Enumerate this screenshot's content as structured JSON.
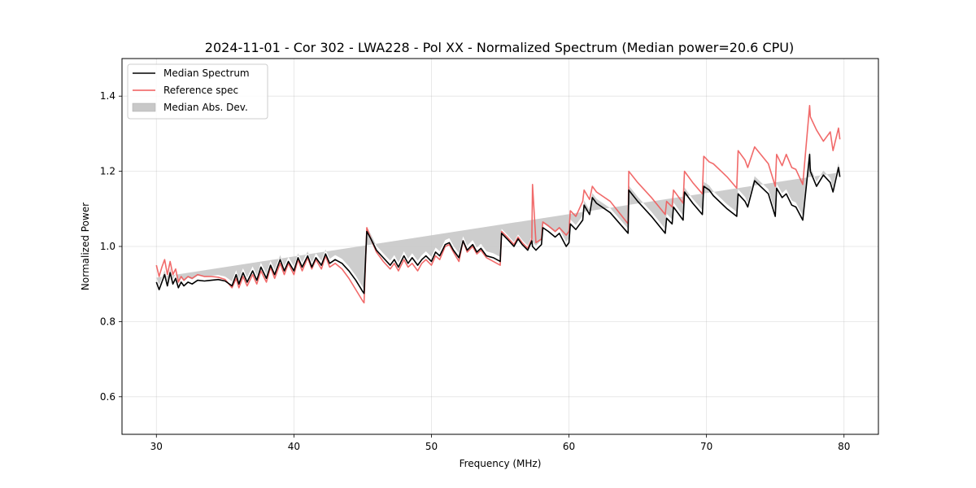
{
  "chart_data": {
    "type": "line",
    "title": "2024-11-01 - Cor 302 - LWA228 - Pol XX - Normalized Spectrum (Median power=20.6 CPU)",
    "xlabel": "Frequency (MHz)",
    "ylabel": "Normalized Power",
    "xlim": [
      27.5,
      82.5
    ],
    "ylim": [
      0.5,
      1.5
    ],
    "xticks": [
      30,
      40,
      50,
      60,
      70,
      80
    ],
    "xtick_labels": [
      "30",
      "40",
      "50",
      "60",
      "70",
      "80"
    ],
    "yticks": [
      0.6,
      0.8,
      1.0,
      1.2,
      1.4
    ],
    "ytick_labels": [
      "0.6",
      "0.8",
      "1.0",
      "1.2",
      "1.4"
    ],
    "grid": true,
    "legend": {
      "placement": "top-left",
      "entries": [
        {
          "label": "Median Spectrum",
          "kind": "line",
          "color": "#000000"
        },
        {
          "label": "Reference spec",
          "kind": "line",
          "color": "#f05a5a"
        },
        {
          "label": "Median Abs. Dev.",
          "kind": "band",
          "color": "#c8c8c8"
        }
      ]
    },
    "mad_halfwidth": 0.012,
    "x": [
      30.0,
      30.2,
      30.4,
      30.6,
      30.8,
      31.0,
      31.2,
      31.4,
      31.6,
      31.8,
      32.0,
      32.3,
      32.6,
      33.0,
      33.5,
      34.0,
      34.5,
      35.0,
      35.5,
      35.8,
      36.0,
      36.3,
      36.6,
      37.0,
      37.3,
      37.6,
      38.0,
      38.3,
      38.6,
      39.0,
      39.3,
      39.6,
      40.0,
      40.3,
      40.6,
      41.0,
      41.3,
      41.6,
      42.0,
      42.3,
      42.6,
      43.0,
      43.5,
      44.0,
      44.5,
      45.0,
      45.1,
      45.3,
      45.6,
      46.0,
      46.5,
      47.0,
      47.3,
      47.6,
      48.0,
      48.3,
      48.6,
      49.0,
      49.3,
      49.6,
      50.0,
      50.3,
      50.6,
      51.0,
      51.3,
      51.6,
      52.0,
      52.3,
      52.6,
      53.0,
      53.3,
      53.6,
      54.0,
      54.5,
      55.0,
      55.1,
      55.5,
      56.0,
      56.3,
      56.6,
      57.0,
      57.3,
      57.35,
      57.6,
      58.0,
      58.1,
      58.5,
      59.0,
      59.3,
      59.8,
      60.0,
      60.1,
      60.5,
      61.0,
      61.1,
      61.5,
      61.7,
      62.0,
      63.0,
      64.3,
      64.35,
      65.0,
      66.0,
      67.0,
      67.1,
      67.5,
      67.6,
      68.3,
      68.4,
      69.0,
      69.7,
      69.8,
      70.2,
      70.5,
      71.5,
      72.2,
      72.3,
      72.8,
      73.0,
      73.5,
      74.5,
      75.0,
      75.1,
      75.5,
      75.8,
      76.2,
      76.5,
      77.0,
      77.5,
      77.55,
      78.0,
      78.5,
      79.0,
      79.2,
      79.6,
      79.7,
      80.0
    ],
    "series": [
      {
        "name": "Median Spectrum",
        "color": "#000000",
        "values": [
          0.905,
          0.885,
          0.905,
          0.925,
          0.895,
          0.93,
          0.9,
          0.915,
          0.89,
          0.905,
          0.895,
          0.905,
          0.9,
          0.91,
          0.908,
          0.91,
          0.912,
          0.908,
          0.895,
          0.925,
          0.9,
          0.93,
          0.905,
          0.935,
          0.91,
          0.945,
          0.915,
          0.95,
          0.925,
          0.965,
          0.935,
          0.96,
          0.935,
          0.97,
          0.945,
          0.975,
          0.945,
          0.97,
          0.95,
          0.98,
          0.955,
          0.965,
          0.955,
          0.935,
          0.91,
          0.88,
          0.875,
          1.04,
          1.02,
          0.99,
          0.97,
          0.95,
          0.965,
          0.945,
          0.975,
          0.955,
          0.97,
          0.95,
          0.965,
          0.975,
          0.96,
          0.985,
          0.975,
          1.005,
          1.01,
          0.99,
          0.97,
          1.015,
          0.99,
          1.005,
          0.985,
          0.995,
          0.975,
          0.97,
          0.96,
          1.035,
          1.02,
          1.0,
          1.02,
          1.005,
          0.99,
          1.015,
          1.0,
          0.99,
          1.005,
          1.05,
          1.04,
          1.025,
          1.035,
          1.0,
          1.01,
          1.06,
          1.045,
          1.07,
          1.11,
          1.085,
          1.13,
          1.115,
          1.09,
          1.035,
          1.15,
          1.12,
          1.08,
          1.035,
          1.075,
          1.06,
          1.105,
          1.07,
          1.145,
          1.115,
          1.085,
          1.16,
          1.15,
          1.135,
          1.1,
          1.08,
          1.14,
          1.12,
          1.105,
          1.175,
          1.14,
          1.08,
          1.155,
          1.13,
          1.14,
          1.11,
          1.105,
          1.07,
          1.245,
          1.2,
          1.16,
          1.19,
          1.17,
          1.145,
          1.21,
          1.185
        ]
      },
      {
        "name": "Reference spec",
        "color": "#f05a5a",
        "values": [
          0.95,
          0.92,
          0.945,
          0.965,
          0.925,
          0.96,
          0.925,
          0.94,
          0.905,
          0.92,
          0.91,
          0.92,
          0.915,
          0.925,
          0.92,
          0.92,
          0.918,
          0.912,
          0.89,
          0.915,
          0.89,
          0.92,
          0.895,
          0.925,
          0.9,
          0.935,
          0.905,
          0.945,
          0.915,
          0.955,
          0.925,
          0.955,
          0.925,
          0.965,
          0.935,
          0.97,
          0.94,
          0.965,
          0.94,
          0.975,
          0.945,
          0.955,
          0.94,
          0.915,
          0.885,
          0.855,
          0.85,
          1.05,
          1.02,
          0.985,
          0.96,
          0.94,
          0.955,
          0.935,
          0.965,
          0.945,
          0.955,
          0.935,
          0.955,
          0.965,
          0.95,
          0.975,
          0.965,
          1.0,
          1.005,
          0.985,
          0.96,
          1.015,
          0.985,
          1.0,
          0.98,
          0.99,
          0.97,
          0.96,
          0.95,
          1.04,
          1.025,
          1.005,
          1.025,
          1.01,
          0.995,
          1.02,
          1.165,
          1.01,
          1.02,
          1.065,
          1.055,
          1.04,
          1.05,
          1.03,
          1.04,
          1.095,
          1.08,
          1.12,
          1.15,
          1.125,
          1.16,
          1.145,
          1.12,
          1.06,
          1.2,
          1.17,
          1.13,
          1.085,
          1.12,
          1.105,
          1.15,
          1.115,
          1.2,
          1.17,
          1.14,
          1.24,
          1.225,
          1.22,
          1.185,
          1.155,
          1.255,
          1.23,
          1.21,
          1.265,
          1.22,
          1.16,
          1.245,
          1.215,
          1.245,
          1.21,
          1.205,
          1.165,
          1.375,
          1.345,
          1.31,
          1.28,
          1.305,
          1.255,
          1.315,
          1.285
        ]
      }
    ]
  }
}
